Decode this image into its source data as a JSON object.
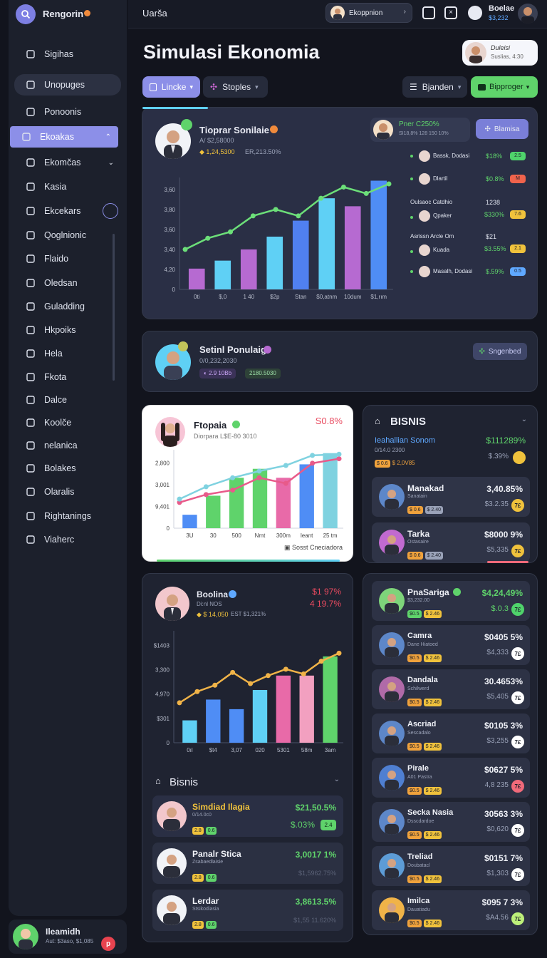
{
  "app": {
    "title": "Rengorin",
    "top_label": "Uarša",
    "user_chip": "Ekoppnion",
    "profile_name": "Boelae",
    "profile_sub": "$3,232"
  },
  "page": {
    "title": "Simulasi Ekonomia",
    "header_user_name": "Duleisi",
    "header_user_sub": "Suslias, 4:30"
  },
  "toolbar": {
    "btn1": "Lincke",
    "btn2": "Stoples",
    "btn3": "Bjanden",
    "btn4": "Bipproger"
  },
  "sidebar": {
    "items": [
      "Sigihas",
      "Unopuges",
      "Ponoonis",
      "Ekoakas",
      "Ekomčas",
      "Kasia",
      "Ekcekars",
      "Qoglnionic",
      "Flaido",
      "Oledsan",
      "Guladding",
      "Hkpoiks",
      "Hela",
      "Fkota",
      "Dalce",
      "Koolče",
      "nelanica",
      "Bolakes",
      "Olaralis",
      "Rightanings",
      "Viaherc"
    ],
    "footer_name": "Ileamidh",
    "footer_sub": "Aut: $3aso, $1,085"
  },
  "card1": {
    "title": "Tioprar Sonilaie",
    "sub": "A/ $2,58000",
    "stat1": "1,24,5300",
    "stat2": "ER,213.50%",
    "filter_title": "Pner C250%",
    "filter_sub": "SI18,8% 128 150 10%",
    "badge_btn": "Blamisa",
    "legend": [
      {
        "name": "Bassk, Dodasi",
        "val": "$18%",
        "chip": "2.5",
        "chip_color": "#4fd36b"
      },
      {
        "name": "Dlartil",
        "val": "$0.8%",
        "chip": "M",
        "chip_color": "#f0634c"
      },
      {
        "name": "Oulsaoc Catdhio",
        "name2": "Qpaker",
        "val": "1238",
        "val2": "$330%",
        "chip": "7.6",
        "chip_color": "#f0c23c"
      },
      {
        "name": "Asrissn Arcle Om",
        "name2": "Kuada",
        "val": "$21",
        "val2": "$3.55%",
        "chip": "2.1",
        "chip_color": "#f0c23c"
      },
      {
        "name": "Masalh, Dodasi",
        "val": "$.59%",
        "chip": "0.5",
        "chip_color": "#5fa8ff"
      }
    ]
  },
  "card2": {
    "title": "Setinl Ponulaig",
    "sub": "0/0,232,2030",
    "tag1": "2.9 10Bb",
    "tag2": "2180.5030",
    "btn": "Sngenbed"
  },
  "card3": {
    "title": "Ftopaia",
    "sub": "Diorpara L$E-80 3010",
    "value": "S0.8%",
    "footer": "Sosst  Cneciadora"
  },
  "card4": {
    "title": "BISNIS",
    "lead_name": "Ieahallian Sonom",
    "lead_sub": "0/14.0 2300",
    "lead_val": "$111289%",
    "lead_val2": "$.39%",
    "lead_tag": "$ 2,0V85",
    "rows": [
      {
        "name": "Manakad",
        "sub": "Sanatain",
        "v1": "3,40.85%",
        "v2": "$3.2.35",
        "badge_color": "#f0c23c"
      },
      {
        "name": "Tarka",
        "sub": "Ostasaire",
        "v1": "$8000 9%",
        "v2": "$5,335",
        "badge_color": "#f0c23c"
      }
    ]
  },
  "card5": {
    "title": "Boolina",
    "sub": "Di:nl NOS",
    "stat": "$ 14,050",
    "stat2": "EST $1,321%",
    "v1": "$1 97%",
    "v2": "4 19.7%"
  },
  "card6": {
    "title": "Bisnis",
    "rows": [
      {
        "name": "Simdiad Ilagia",
        "sub": "0/14.0c0",
        "v1": "$21,50.5%",
        "v2": "$.03%",
        "chip": "2.4"
      },
      {
        "name": "Panalr Stica",
        "sub": "Zsabaedlaisie",
        "v1": "3,0017 1%",
        "v2": "$1,5962.75%"
      },
      {
        "name": "Lerdar",
        "sub": "Stsikodiasia",
        "v1": "3,8613.5%",
        "v2": "$1,55 11.620%"
      }
    ]
  },
  "card7": {
    "rows": [
      {
        "name": "PnaSariga",
        "sub": "$3,232.00",
        "v1": "$4,24,49%",
        "v2": "$.0.3",
        "badge_color": "#4fd36b",
        "skin": "#7ed47a"
      },
      {
        "name": "Camra",
        "sub": "Dane Hiatoed",
        "v1": "$0405 5%",
        "v2": "$4,333",
        "badge_color": "#ffffff",
        "skin": "#5d87c9"
      },
      {
        "name": "Dandala",
        "sub": "Schilwerd",
        "v1": "30.4653%",
        "v2": "$5,405",
        "badge_color": "#ffffff",
        "skin": "#b06aa8"
      },
      {
        "name": "Ascriad",
        "sub": "Sescadalo",
        "v1": "$0105 3%",
        "v2": "$3,255",
        "badge_color": "#ffffff",
        "skin": "#5d87c9"
      },
      {
        "name": "Pirale",
        "sub": "A01 Pastra",
        "v1": "$0627 5%",
        "v2": "4,8 235",
        "badge_color": "#f06a7a",
        "skin": "#4f7fd1"
      },
      {
        "name": "Secka Nasia",
        "sub": "Dsscdardoe",
        "v1": "30563 3%",
        "v2": "$0,620",
        "badge_color": "#ffffff",
        "skin": "#5d87c9"
      },
      {
        "name": "Treliad",
        "sub": "Doubatacl",
        "v1": "$0151 7%",
        "v2": "$1,303",
        "badge_color": "#ffffff",
        "skin": "#5d9cd6"
      },
      {
        "name": "Imilca",
        "sub": "Dauatiadu",
        "v1": "$095 7 3%",
        "v2": "$A4.56",
        "badge_color": "#bdf07a",
        "skin": "#f0b348"
      }
    ]
  },
  "chart_data": [
    {
      "type": "bar",
      "categories": [
        "0ti",
        "$,0",
        "1 40",
        "$2p",
        "Stan",
        "$0,atnm",
        "10dum",
        "$1,rım"
      ],
      "values": [
        1.3,
        1.8,
        2.5,
        3.3,
        4.3,
        5.7,
        5.2,
        6.8
      ],
      "line_values": [
        2.5,
        3.2,
        3.6,
        4.6,
        5.0,
        4.6,
        5.7,
        6.4,
        6.0,
        6.6
      ],
      "ylabels": [
        "0",
        "4,20",
        "3,40",
        "3,60",
        "3,80",
        "3,60"
      ],
      "colors": [
        "#b66ad1",
        "#5fd0f5",
        "#b66ad1",
        "#5fd0f5",
        "#5080f0",
        "#5fd0f5",
        "#b66ad1",
        "#4f8df5"
      ],
      "line_color": "#6cdf79"
    },
    {
      "type": "bar",
      "categories": [
        "3U",
        "30",
        "500",
        "Nmt",
        "300m",
        "leant",
        "25 tm"
      ],
      "values": [
        1.2,
        2.9,
        4.5,
        5.3,
        4.5,
        5.7,
        6.7
      ],
      "ylabels": [
        "0",
        "9,401",
        "3,001",
        "2,800"
      ],
      "colors": [
        "#4f8df5",
        "#5fd36b",
        "#5fd36b",
        "#5fd36b",
        "#e86aa8",
        "#4f8df5",
        "#7fd2e0"
      ],
      "lines": [
        {
          "color": "#e85a8a",
          "values": [
            2.3,
            3.0,
            3.4,
            4.5,
            4.0,
            5.8,
            6.2
          ]
        },
        {
          "color": "#7fd2e0",
          "values": [
            2.6,
            3.7,
            4.5,
            5.1,
            5.6,
            6.5,
            6.6
          ]
        }
      ]
    },
    {
      "type": "bar",
      "categories": [
        "0ıl",
        "$t4",
        "3,07",
        "020",
        "5301",
        "58m",
        "3am"
      ],
      "values": [
        1.4,
        2.7,
        2.1,
        3.3,
        4.2,
        4.2,
        5.4
      ],
      "ylabels": [
        "0",
        "$301",
        "4,970",
        "3,300",
        "$1403"
      ],
      "colors": [
        "#5fd0f5",
        "#4f8df5",
        "#4f8df5",
        "#5fd0f5",
        "#e86aa8",
        "#f2a0c0",
        "#5fd36b"
      ],
      "line_color": "#f0b348",
      "line_values": [
        2.5,
        3.2,
        3.6,
        4.4,
        3.7,
        4.2,
        4.6,
        4.3,
        5.1,
        5.6
      ]
    }
  ]
}
